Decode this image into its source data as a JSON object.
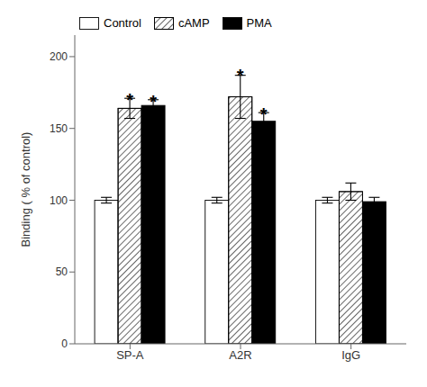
{
  "chart_data": {
    "type": "bar",
    "categories": [
      "SP-A",
      "A2R",
      "IgG"
    ],
    "series": [
      {
        "name": "Control",
        "color": "white",
        "values": [
          100,
          100,
          100
        ],
        "errors": [
          2,
          2,
          2
        ]
      },
      {
        "name": "cAMP",
        "color": "white",
        "values": [
          164,
          172,
          106
        ],
        "errors": [
          7,
          15,
          6
        ]
      },
      {
        "name": "PMA",
        "color": "black",
        "values": [
          166,
          155,
          99
        ],
        "errors": [
          4,
          6,
          3
        ]
      }
    ],
    "ylabel": "Binding ( % of control)",
    "ylim": [
      0,
      215
    ],
    "yticks": [
      0,
      50,
      100,
      150,
      200
    ],
    "grid": false,
    "legend": "upper left",
    "annotations": [
      {
        "text": "*",
        "category": "SP-A",
        "series": "cAMP",
        "y": 173
      },
      {
        "text": "*",
        "category": "SP-A",
        "series": "PMA",
        "y": 172
      },
      {
        "text": "*",
        "category": "A2R",
        "series": "cAMP",
        "y": 190
      },
      {
        "text": "*",
        "category": "A2R",
        "series": "PMA",
        "y": 163
      }
    ]
  }
}
